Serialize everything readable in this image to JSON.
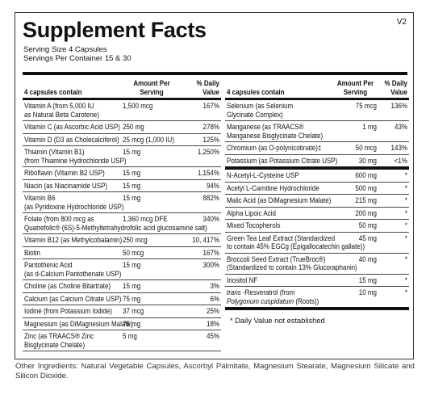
{
  "header": {
    "title": "Supplement Facts",
    "version": "V2",
    "serving_size": "Serving Size  4 Capsules",
    "servings_per_container": "Servings Per Container  15 & 30"
  },
  "left": {
    "header": {
      "name": "4 capsules contain",
      "amount": [
        "Amount Per",
        "Serving"
      ],
      "dv": [
        "% Daily",
        "Value"
      ]
    },
    "rows": [
      {
        "name": [
          "Vitamin A (from 5,000 IU",
          "as Natural Beta Carotene)"
        ],
        "amount": "1,500 mcg",
        "dv": "167%"
      },
      {
        "name": [
          "Vitamin C (as Ascorbic Acid USP)"
        ],
        "amount": "250 mg",
        "dv": "278%"
      },
      {
        "name": [
          "Vitamin D (D3 as Cholecalciferol)"
        ],
        "amount": "25 mcg (1,000 IU)",
        "dv": "125%"
      },
      {
        "name": [
          "Thiamin (Vitamin B1)",
          "(from Thiamine Hydrochloride USP)"
        ],
        "amount": "15 mg",
        "dv": "1,250%"
      },
      {
        "name": [
          "Riboflavin (Vitamin B2 USP)"
        ],
        "amount": "15 mg",
        "dv": "1,154%"
      },
      {
        "name": [
          "Niacin (as Niacinamide USP)"
        ],
        "amount": "15 mg",
        "dv": "94%"
      },
      {
        "name": [
          "Vitamin B6",
          "(as Pyridoxine Hydrochloride USP)"
        ],
        "amount": "15 mg",
        "dv": "882%"
      },
      {
        "name": [
          "Folate (from 800 mcg as",
          "Quatrefolic® (6S)-5-Methyltetrahydrofolic acid glucosamine salt)"
        ],
        "amount": "1,360 mcg DFE",
        "dv": "340%"
      },
      {
        "name": [
          "Vitamin B12 (as Methylcobalamin)"
        ],
        "amount": "250 mcg",
        "dv": "10, 417%"
      },
      {
        "name": [
          "Biotin"
        ],
        "amount": "50 mcg",
        "dv": "167%"
      },
      {
        "name": [
          "Pantothenic Acid",
          "(as d-Calcium Pantothenate USP)"
        ],
        "amount": "15 mg",
        "dv": "300%"
      },
      {
        "name": [
          "Choline (as Choline Bitartrate)"
        ],
        "amount": "15 mg",
        "dv": "3%"
      },
      {
        "name": [
          "Calcium (as Calcium Citrate USP)"
        ],
        "amount": "75 mg",
        "dv": "6%"
      },
      {
        "name": [
          "Iodine (from Potassium Iodide)"
        ],
        "amount": "37 mcg",
        "dv": "25%"
      },
      {
        "name": [
          "Magnesium (as DiMagnesium Malate)"
        ],
        "amount": "75 mg",
        "dv": "18%"
      },
      {
        "name": [
          "Zinc (as TRAACS® Zinc",
          "Bisglycinate Chelate)"
        ],
        "amount": "5 mg",
        "dv": "45%"
      }
    ]
  },
  "right": {
    "header": {
      "name": "4 capsules contain",
      "amount": [
        "Amount Per",
        "Serving"
      ],
      "dv": [
        "% Daily",
        "Value"
      ]
    },
    "sections": [
      [
        {
          "name": [
            "Selenium (as Selenium",
            "Glycinate Complex)"
          ],
          "amount": "75 mcg",
          "dv": "136%"
        },
        {
          "name": [
            "Manganese (as TRAACS®",
            "Manganese Bisglycinate Chelate)"
          ],
          "amount": "1 mg",
          "dv": "43%"
        },
        {
          "name": [
            "Chromium (as O-polynicotinate)‡"
          ],
          "amount": "50 mcg",
          "dv": "143%"
        },
        {
          "name": [
            "Potassium (as Potassium Citrate USP)"
          ],
          "amount": "30 mg",
          "dv": "<1%"
        }
      ],
      [
        {
          "name": [
            "N-Acetyl-L-Cysteine USP"
          ],
          "amount": "600 mg",
          "dv": "*"
        },
        {
          "name": [
            "Acetyl L-Carnitine Hydrochloride"
          ],
          "amount": "500 mg",
          "dv": "*"
        },
        {
          "name": [
            "Malic Acid (as DiMagnesium Malate)"
          ],
          "amount": "215 mg",
          "dv": "*"
        },
        {
          "name": [
            "Alpha Lipoic Acid"
          ],
          "amount": "200 mg",
          "dv": "*"
        },
        {
          "name": [
            "Mixed Tocopherols"
          ],
          "amount": "50 mg",
          "dv": "*"
        },
        {
          "name": [
            "Green Tea Leaf Extract  (Standardized",
            "to contain 45% EGCg (Epigallocatechin gallate))"
          ],
          "amount": "45 mg",
          "dv": "*"
        },
        {
          "name": [
            "Broccoli Seed Extract (TrueBroc®)",
            "(Standardized to contain 13% Glucoraphanin)"
          ],
          "amount": "40 mg",
          "dv": "*"
        },
        {
          "name": [
            "Inositol NF"
          ],
          "amount": "15 mg",
          "dv": "*"
        },
        {
          "name": [
            [
              {
                "text": "trans",
                "italic": true
              },
              {
                "text": " -Resveratrol (from"
              }
            ],
            [
              {
                "text": "Polygonum cuspidatum",
                "italic": true
              },
              {
                "text": " (Roots))"
              }
            ]
          ],
          "amount": "10 mg",
          "dv": "*"
        }
      ]
    ],
    "footnote": "*  Daily Value not established"
  },
  "footer": "Other Ingredients: Natural Vegetable Capsules, Ascorbyl Palmitate, Magnesium Stearate, Magnesium Silicate and Silicon Dioxide."
}
